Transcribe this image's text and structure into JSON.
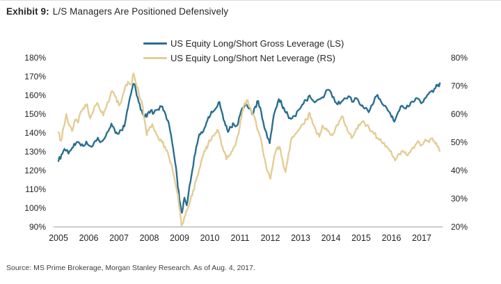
{
  "header": {
    "exhibit_label": "Exhibit 9:",
    "title": "L/S Managers Are Positioned Defensively"
  },
  "legend": {
    "items": [
      {
        "label": "US Equity Long/Short Gross Leverage (LS)",
        "color": "#2a6e8f"
      },
      {
        "label": "US Equity Long/Short Net Leverage (RS)",
        "color": "#e3cd96"
      }
    ]
  },
  "footer": {
    "source": "Source: MS Prime Brokerage, Morgan Stanley Research. As of Aug. 4, 2017."
  },
  "chart_data": {
    "type": "line",
    "title": "Exhibit 9: L/S Managers Are Positioned Defensively",
    "legend_position": "top-center",
    "grid": false,
    "left_axis": {
      "min": 90,
      "max": 180,
      "step": 10,
      "format": "percent",
      "tick_suffix": "%"
    },
    "right_axis": {
      "min": 20,
      "max": 80,
      "step": 10,
      "format": "percent",
      "tick_suffix": "%"
    },
    "x_axis": {
      "ticks": [
        2005,
        2006,
        2007,
        2008,
        2009,
        2010,
        2011,
        2012,
        2013,
        2014,
        2015,
        2016,
        2017
      ],
      "end": 2017.6
    },
    "series": [
      {
        "name": "US Equity Long/Short Gross Leverage (LS)",
        "axis": "left",
        "color": "#2a6e8f",
        "points": [
          [
            2005.0,
            125.0
          ],
          [
            2005.1,
            128.5
          ],
          [
            2005.2,
            131.5
          ],
          [
            2005.33,
            129.0
          ],
          [
            2005.45,
            132.0
          ],
          [
            2005.55,
            133.5
          ],
          [
            2005.7,
            134.5
          ],
          [
            2005.82,
            133.0
          ],
          [
            2005.92,
            135.5
          ],
          [
            2006.05,
            133.0
          ],
          [
            2006.18,
            135.0
          ],
          [
            2006.3,
            137.5
          ],
          [
            2006.42,
            135.5
          ],
          [
            2006.52,
            137.0
          ],
          [
            2006.65,
            141.0
          ],
          [
            2006.75,
            145.0
          ],
          [
            2006.85,
            142.0
          ],
          [
            2006.95,
            139.5
          ],
          [
            2007.08,
            141.5
          ],
          [
            2007.18,
            143.5
          ],
          [
            2007.3,
            153.5
          ],
          [
            2007.4,
            161.0
          ],
          [
            2007.47,
            166.0
          ],
          [
            2007.55,
            163.5
          ],
          [
            2007.65,
            156.5
          ],
          [
            2007.75,
            152.0
          ],
          [
            2007.85,
            148.5
          ],
          [
            2007.95,
            150.5
          ],
          [
            2008.05,
            152.0
          ],
          [
            2008.15,
            150.5
          ],
          [
            2008.28,
            152.5
          ],
          [
            2008.4,
            154.0
          ],
          [
            2008.5,
            151.5
          ],
          [
            2008.62,
            146.5
          ],
          [
            2008.72,
            139.0
          ],
          [
            2008.82,
            128.0
          ],
          [
            2008.92,
            116.0
          ],
          [
            2009.0,
            104.0
          ],
          [
            2009.08,
            97.5
          ],
          [
            2009.16,
            105.5
          ],
          [
            2009.24,
            101.5
          ],
          [
            2009.33,
            112.0
          ],
          [
            2009.42,
            120.0
          ],
          [
            2009.52,
            129.0
          ],
          [
            2009.62,
            137.0
          ],
          [
            2009.72,
            140.5
          ],
          [
            2009.82,
            142.5
          ],
          [
            2009.92,
            146.5
          ],
          [
            2010.02,
            149.5
          ],
          [
            2010.12,
            151.5
          ],
          [
            2010.22,
            153.5
          ],
          [
            2010.32,
            156.5
          ],
          [
            2010.42,
            150.0
          ],
          [
            2010.52,
            144.0
          ],
          [
            2010.6,
            140.5
          ],
          [
            2010.7,
            143.0
          ],
          [
            2010.8,
            144.5
          ],
          [
            2010.9,
            144.0
          ],
          [
            2011.0,
            149.5
          ],
          [
            2011.1,
            153.5
          ],
          [
            2011.2,
            155.5
          ],
          [
            2011.3,
            153.0
          ],
          [
            2011.4,
            150.0
          ],
          [
            2011.5,
            154.0
          ],
          [
            2011.6,
            157.0
          ],
          [
            2011.7,
            151.0
          ],
          [
            2011.8,
            143.0
          ],
          [
            2011.9,
            137.5
          ],
          [
            2011.98,
            134.5
          ],
          [
            2012.08,
            146.0
          ],
          [
            2012.18,
            153.0
          ],
          [
            2012.28,
            158.0
          ],
          [
            2012.38,
            155.0
          ],
          [
            2012.48,
            151.5
          ],
          [
            2012.58,
            149.5
          ],
          [
            2012.68,
            147.5
          ],
          [
            2012.8,
            149.0
          ],
          [
            2012.92,
            152.0
          ],
          [
            2013.05,
            155.0
          ],
          [
            2013.18,
            157.5
          ],
          [
            2013.3,
            160.0
          ],
          [
            2013.42,
            157.0
          ],
          [
            2013.55,
            157.5
          ],
          [
            2013.68,
            158.5
          ],
          [
            2013.8,
            160.5
          ],
          [
            2013.93,
            163.0
          ],
          [
            2014.05,
            159.0
          ],
          [
            2014.18,
            156.0
          ],
          [
            2014.3,
            155.5
          ],
          [
            2014.45,
            158.5
          ],
          [
            2014.58,
            159.5
          ],
          [
            2014.7,
            156.5
          ],
          [
            2014.85,
            158.5
          ],
          [
            2015.0,
            154.5
          ],
          [
            2015.12,
            153.0
          ],
          [
            2015.25,
            151.0
          ],
          [
            2015.38,
            155.0
          ],
          [
            2015.5,
            159.5
          ],
          [
            2015.62,
            158.0
          ],
          [
            2015.75,
            154.5
          ],
          [
            2015.88,
            152.0
          ],
          [
            2016.0,
            148.5
          ],
          [
            2016.1,
            146.0
          ],
          [
            2016.22,
            151.0
          ],
          [
            2016.35,
            154.5
          ],
          [
            2016.48,
            153.0
          ],
          [
            2016.6,
            154.5
          ],
          [
            2016.72,
            156.5
          ],
          [
            2016.85,
            158.5
          ],
          [
            2016.95,
            157.0
          ],
          [
            2017.05,
            156.5
          ],
          [
            2017.18,
            160.0
          ],
          [
            2017.3,
            162.0
          ],
          [
            2017.42,
            163.5
          ],
          [
            2017.52,
            165.0
          ],
          [
            2017.6,
            166.5
          ]
        ]
      },
      {
        "name": "US Equity Long/Short Net Leverage (RS)",
        "axis": "right",
        "color": "#e3cd96",
        "points": [
          [
            2005.0,
            53.5
          ],
          [
            2005.08,
            50.5
          ],
          [
            2005.18,
            55.5
          ],
          [
            2005.26,
            60.0
          ],
          [
            2005.36,
            56.0
          ],
          [
            2005.45,
            54.0
          ],
          [
            2005.55,
            58.0
          ],
          [
            2005.65,
            57.0
          ],
          [
            2005.75,
            61.0
          ],
          [
            2005.85,
            62.0
          ],
          [
            2005.95,
            63.5
          ],
          [
            2006.05,
            58.5
          ],
          [
            2006.15,
            61.0
          ],
          [
            2006.28,
            64.0
          ],
          [
            2006.38,
            61.5
          ],
          [
            2006.48,
            59.5
          ],
          [
            2006.58,
            62.5
          ],
          [
            2006.7,
            66.0
          ],
          [
            2006.8,
            68.0
          ],
          [
            2006.9,
            66.0
          ],
          [
            2007.0,
            63.0
          ],
          [
            2007.1,
            65.5
          ],
          [
            2007.2,
            69.5
          ],
          [
            2007.3,
            71.5
          ],
          [
            2007.4,
            70.5
          ],
          [
            2007.48,
            74.5
          ],
          [
            2007.56,
            71.0
          ],
          [
            2007.65,
            67.5
          ],
          [
            2007.75,
            64.5
          ],
          [
            2007.85,
            57.5
          ],
          [
            2007.92,
            52.5
          ],
          [
            2008.0,
            55.0
          ],
          [
            2008.1,
            56.5
          ],
          [
            2008.2,
            54.0
          ],
          [
            2008.3,
            51.5
          ],
          [
            2008.42,
            50.0
          ],
          [
            2008.52,
            48.5
          ],
          [
            2008.62,
            46.0
          ],
          [
            2008.72,
            42.5
          ],
          [
            2008.82,
            38.0
          ],
          [
            2008.92,
            32.5
          ],
          [
            2009.0,
            26.5
          ],
          [
            2009.07,
            20.5
          ],
          [
            2009.16,
            23.5
          ],
          [
            2009.25,
            26.0
          ],
          [
            2009.35,
            29.0
          ],
          [
            2009.45,
            33.0
          ],
          [
            2009.55,
            36.5
          ],
          [
            2009.65,
            40.5
          ],
          [
            2009.75,
            44.5
          ],
          [
            2009.85,
            47.0
          ],
          [
            2009.95,
            49.5
          ],
          [
            2010.05,
            51.0
          ],
          [
            2010.15,
            52.5
          ],
          [
            2010.25,
            54.5
          ],
          [
            2010.35,
            51.5
          ],
          [
            2010.45,
            47.0
          ],
          [
            2010.55,
            44.0
          ],
          [
            2010.65,
            45.5
          ],
          [
            2010.75,
            47.0
          ],
          [
            2010.85,
            49.0
          ],
          [
            2010.95,
            53.0
          ],
          [
            2011.05,
            59.0
          ],
          [
            2011.12,
            63.0
          ],
          [
            2011.22,
            65.0
          ],
          [
            2011.32,
            62.5
          ],
          [
            2011.42,
            60.0
          ],
          [
            2011.52,
            57.5
          ],
          [
            2011.62,
            53.5
          ],
          [
            2011.72,
            49.5
          ],
          [
            2011.82,
            44.0
          ],
          [
            2011.92,
            39.5
          ],
          [
            2012.0,
            37.0
          ],
          [
            2012.1,
            43.0
          ],
          [
            2012.2,
            47.5
          ],
          [
            2012.3,
            48.5
          ],
          [
            2012.4,
            44.0
          ],
          [
            2012.5,
            39.5
          ],
          [
            2012.6,
            46.0
          ],
          [
            2012.7,
            51.5
          ],
          [
            2012.82,
            53.0
          ],
          [
            2012.95,
            54.5
          ],
          [
            2013.08,
            56.5
          ],
          [
            2013.2,
            58.0
          ],
          [
            2013.3,
            60.5
          ],
          [
            2013.4,
            56.5
          ],
          [
            2013.52,
            53.5
          ],
          [
            2013.62,
            52.0
          ],
          [
            2013.72,
            56.0
          ],
          [
            2013.85,
            55.0
          ],
          [
            2013.95,
            53.5
          ],
          [
            2014.05,
            52.5
          ],
          [
            2014.15,
            55.0
          ],
          [
            2014.28,
            57.5
          ],
          [
            2014.4,
            59.0
          ],
          [
            2014.52,
            55.5
          ],
          [
            2014.62,
            53.0
          ],
          [
            2014.72,
            52.0
          ],
          [
            2014.85,
            55.0
          ],
          [
            2014.95,
            56.0
          ],
          [
            2015.08,
            57.5
          ],
          [
            2015.18,
            56.0
          ],
          [
            2015.3,
            54.0
          ],
          [
            2015.42,
            53.0
          ],
          [
            2015.55,
            51.5
          ],
          [
            2015.68,
            50.0
          ],
          [
            2015.8,
            48.5
          ],
          [
            2015.92,
            47.5
          ],
          [
            2016.02,
            45.5
          ],
          [
            2016.12,
            43.5
          ],
          [
            2016.25,
            46.0
          ],
          [
            2016.38,
            47.0
          ],
          [
            2016.5,
            45.5
          ],
          [
            2016.62,
            46.5
          ],
          [
            2016.75,
            48.0
          ],
          [
            2016.88,
            50.5
          ],
          [
            2017.0,
            49.0
          ],
          [
            2017.12,
            51.0
          ],
          [
            2017.25,
            50.0
          ],
          [
            2017.35,
            51.5
          ],
          [
            2017.45,
            49.5
          ],
          [
            2017.55,
            48.5
          ],
          [
            2017.6,
            47.0
          ]
        ]
      }
    ],
    "source": "Source: MS Prime Brokerage, Morgan Stanley Research. As of Aug. 4, 2017."
  }
}
